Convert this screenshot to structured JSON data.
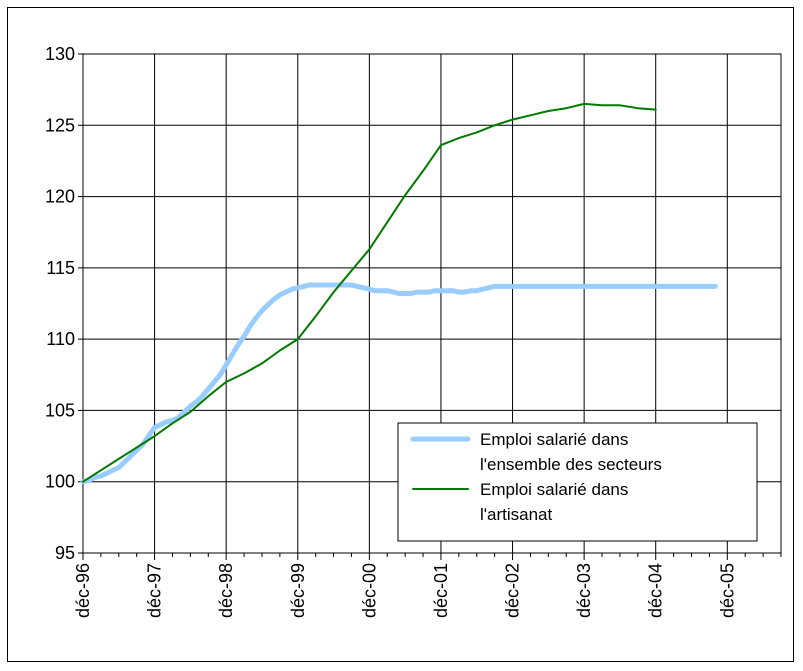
{
  "chart_data": {
    "type": "line",
    "title": "",
    "xlabel": "",
    "ylabel": "",
    "ylim": [
      95,
      130
    ],
    "yticks": [
      "95",
      "100",
      "105",
      "110",
      "115",
      "120",
      "125",
      "130"
    ],
    "xticks": [
      "déc-96",
      "déc-97",
      "déc-98",
      "déc-99",
      "déc-00",
      "déc-01",
      "déc-02",
      "déc-03",
      "déc-04",
      "déc-05"
    ],
    "grid": true,
    "legend_position": "lower-right",
    "series": [
      {
        "name": "Emploi salarié dans l'ensemble des secteurs",
        "legend_lines": [
          "Emploi salarié dans",
          "l'ensemble des secteurs"
        ],
        "color": "#99ccff",
        "x_months": [
          0,
          1,
          2,
          3,
          4,
          5,
          6,
          7,
          8,
          9,
          10,
          11,
          12,
          13,
          14,
          15,
          16,
          17,
          18,
          19,
          20,
          21,
          22,
          23,
          24,
          25,
          26,
          27,
          28,
          29,
          30,
          31,
          32,
          33,
          34,
          35,
          36,
          37,
          38,
          39,
          40,
          41,
          42,
          43,
          44,
          45,
          46,
          47,
          48,
          49,
          50,
          51,
          52,
          53,
          54,
          55,
          56,
          57,
          58,
          59,
          60,
          61,
          62,
          63,
          64,
          65,
          66,
          67,
          68,
          69,
          70,
          71,
          72,
          73,
          74,
          75,
          76,
          77,
          78,
          79,
          80,
          81,
          82,
          83,
          84,
          85,
          86,
          87,
          88,
          89,
          90,
          91,
          92,
          93,
          94,
          95,
          96,
          97,
          98,
          99,
          100,
          101,
          102,
          103,
          104,
          105,
          106
        ],
        "values": [
          100.0,
          100.1,
          100.3,
          100.4,
          100.6,
          100.8,
          101.0,
          101.4,
          101.8,
          102.2,
          102.6,
          103.2,
          103.8,
          104.0,
          104.2,
          104.3,
          104.5,
          104.9,
          105.3,
          105.6,
          106.0,
          106.5,
          107.0,
          107.5,
          108.2,
          108.9,
          109.6,
          110.2,
          110.9,
          111.5,
          112.0,
          112.4,
          112.8,
          113.1,
          113.3,
          113.5,
          113.6,
          113.7,
          113.8,
          113.8,
          113.8,
          113.8,
          113.8,
          113.8,
          113.8,
          113.8,
          113.7,
          113.6,
          113.5,
          113.4,
          113.4,
          113.4,
          113.3,
          113.2,
          113.2,
          113.2,
          113.3,
          113.3,
          113.3,
          113.4,
          113.4,
          113.4,
          113.4,
          113.3,
          113.3,
          113.4,
          113.4,
          113.5,
          113.6,
          113.7,
          113.7,
          113.7,
          113.7,
          113.7,
          113.7,
          113.7,
          113.7,
          113.7,
          113.7,
          113.7,
          113.7,
          113.7,
          113.7,
          113.7,
          113.7,
          113.7,
          113.7,
          113.7,
          113.7,
          113.7,
          113.7,
          113.7,
          113.7,
          113.7,
          113.7,
          113.7,
          113.7,
          113.7,
          113.7,
          113.7,
          113.7,
          113.7,
          113.7,
          113.7,
          113.7,
          113.7,
          113.7
        ],
        "line_width": 5
      },
      {
        "name": "Emploi salarié dans l'artisanat",
        "legend_lines": [
          "Emploi salarié dans",
          "l'artisanat"
        ],
        "color": "#007a00",
        "x_months": [
          0,
          3,
          6,
          9,
          12,
          15,
          18,
          21,
          24,
          27,
          30,
          33,
          36,
          39,
          42,
          45,
          48,
          51,
          54,
          57,
          60,
          63,
          66,
          69,
          72,
          75,
          78,
          81,
          84,
          87,
          90,
          93,
          96
        ],
        "values": [
          100.0,
          100.8,
          101.6,
          102.4,
          103.2,
          104.1,
          104.9,
          106.0,
          107.0,
          107.6,
          108.3,
          109.2,
          110.0,
          111.6,
          113.3,
          114.8,
          116.3,
          118.2,
          120.1,
          121.8,
          123.6,
          124.1,
          124.5,
          125.0,
          125.4,
          125.7,
          126.0,
          126.2,
          126.5,
          126.4,
          126.4,
          126.2,
          126.1
        ],
        "line_width": 2
      }
    ]
  }
}
